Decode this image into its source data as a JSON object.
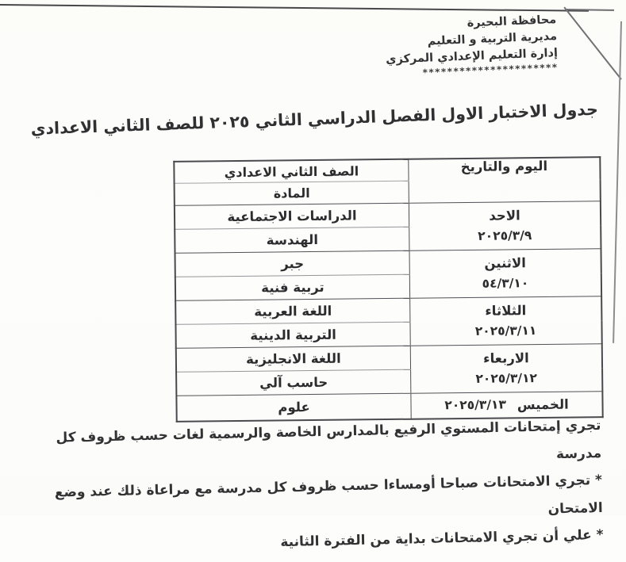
{
  "letterhead": {
    "line1": "محافظة البحيرة",
    "line2": "مديرية التربية و التعليم",
    "line3": "إدارة التعليم الإعدادي المركزي",
    "stars": "**********************"
  },
  "title": "جدول الاختبار الاول الفصل الدراسي الثاني ٢٠٢٥ للصف الثاني الاعدادي",
  "table": {
    "header": {
      "day_column": "اليوم والتاريخ",
      "subject_column_line1": "الصف الثاني الاعدادي",
      "subject_column_line2": "المادة"
    },
    "rows": [
      {
        "day": "الاحد",
        "date": "٢٠٢٥/٣/٩",
        "subjects": [
          "الدراسات الاجتماعية",
          "الهندسة"
        ]
      },
      {
        "day": "الاثنين",
        "date": "٥٤/٣/١٠",
        "subjects": [
          "جبر",
          "تربية فنية"
        ]
      },
      {
        "day": "الثلاثاء",
        "date": "٢٠٢٥/٣/١١",
        "subjects": [
          "اللغة العربية",
          "التربية الدينية"
        ]
      },
      {
        "day": "الاربعاء",
        "date": "٢٠٢٥/٣/١٢",
        "subjects": [
          "اللغة الانجليزية",
          "حاسب آلي"
        ]
      },
      {
        "day": "الخميس",
        "date": "٢٠٢٥/٣/١٣",
        "subjects": [
          "علوم"
        ]
      }
    ]
  },
  "notes": [
    "تجري إمتحانات المستوي الرفيع بالمدارس الخاصة والرسمية لغات حسب ظروف كل مدرسة",
    "* تجري الامتحانات صباحا أومساءا حسب ظروف كل مدرسة مع مراعاة ذلك عند وضع",
    "الامتحان",
    "* علي أن تجري الامتحانات بداية من الفترة الثانية"
  ]
}
